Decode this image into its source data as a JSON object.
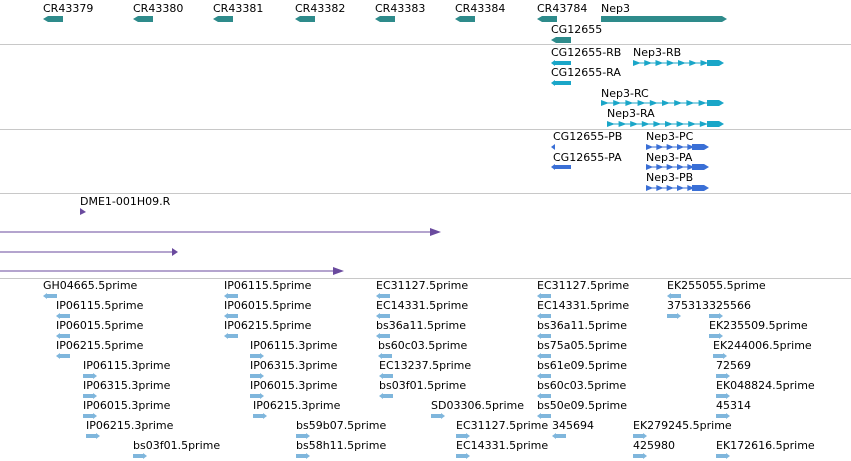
{
  "colors": {
    "gene": "#2e8b8b",
    "transcript": "#1aa6c8",
    "cds": "#3a6fd6",
    "clone": "#6a4a9e",
    "est": "#7fb6dc",
    "divider": "#c8c8c8"
  },
  "tracks": {
    "genes": [
      {
        "name": "CR43379"
      },
      {
        "name": "CR43380"
      },
      {
        "name": "CR43381"
      },
      {
        "name": "CR43382"
      },
      {
        "name": "CR43383"
      },
      {
        "name": "CR43384"
      },
      {
        "name": "CR43784"
      },
      {
        "name": "Nep3"
      },
      {
        "name": "CG12655"
      }
    ],
    "transcripts": [
      {
        "name": "CG12655-RB"
      },
      {
        "name": "Nep3-RB"
      },
      {
        "name": "CG12655-RA"
      },
      {
        "name": "Nep3-RC"
      },
      {
        "name": "Nep3-RA"
      }
    ],
    "proteins": [
      {
        "name": "CG12655-PB"
      },
      {
        "name": "Nep3-PC"
      },
      {
        "name": "CG12655-PA"
      },
      {
        "name": "Nep3-PA"
      },
      {
        "name": "Nep3-PB"
      }
    ],
    "clones": [
      {
        "name": "DME1-001H09.R"
      }
    ],
    "ests": [
      {
        "name": "GH04665.5prime"
      },
      {
        "name": "IP06115.5prime"
      },
      {
        "name": "IP06015.5prime"
      },
      {
        "name": "IP06215.5prime"
      },
      {
        "name": "IP06115.3prime"
      },
      {
        "name": "IP06315.3prime"
      },
      {
        "name": "IP06015.3prime"
      },
      {
        "name": "IP06215.3prime"
      },
      {
        "name": "bs03f01.5prime"
      },
      {
        "name": "IP06115.5prime"
      },
      {
        "name": "IP06015.5prime"
      },
      {
        "name": "IP06215.5prime"
      },
      {
        "name": "IP06115.3prime"
      },
      {
        "name": "IP06315.3prime"
      },
      {
        "name": "IP06015.3prime"
      },
      {
        "name": "IP06215.3prime"
      },
      {
        "name": "bs59b07.5prime"
      },
      {
        "name": "bs58h11.5prime"
      },
      {
        "name": "EC31127.5prime"
      },
      {
        "name": "EC14331.5prime"
      },
      {
        "name": "bs36a11.5prime"
      },
      {
        "name": "bs60c03.5prime"
      },
      {
        "name": "EC13237.5prime"
      },
      {
        "name": "bs03f01.5prime"
      },
      {
        "name": "SD03306.5prime"
      },
      {
        "name": "EC31127.5prime"
      },
      {
        "name": "EC14331.5prime"
      },
      {
        "name": "EC31127.5prime"
      },
      {
        "name": "EC14331.5prime"
      },
      {
        "name": "bs36a11.5prime"
      },
      {
        "name": "bs75a05.5prime"
      },
      {
        "name": "bs61e09.5prime"
      },
      {
        "name": "bs60c03.5prime"
      },
      {
        "name": "bs50e09.5prime"
      },
      {
        "name": "345694"
      },
      {
        "name": "EK255055.5prime"
      },
      {
        "name": "375313"
      },
      {
        "name": "325566"
      },
      {
        "name": "EK235509.5prime"
      },
      {
        "name": "EK244006.5prime"
      },
      {
        "name": "72569"
      },
      {
        "name": "EK048824.5prime"
      },
      {
        "name": "45314"
      },
      {
        "name": "EK279245.5prime"
      },
      {
        "name": "425980"
      },
      {
        "name": "EK172616.5prime"
      }
    ]
  }
}
